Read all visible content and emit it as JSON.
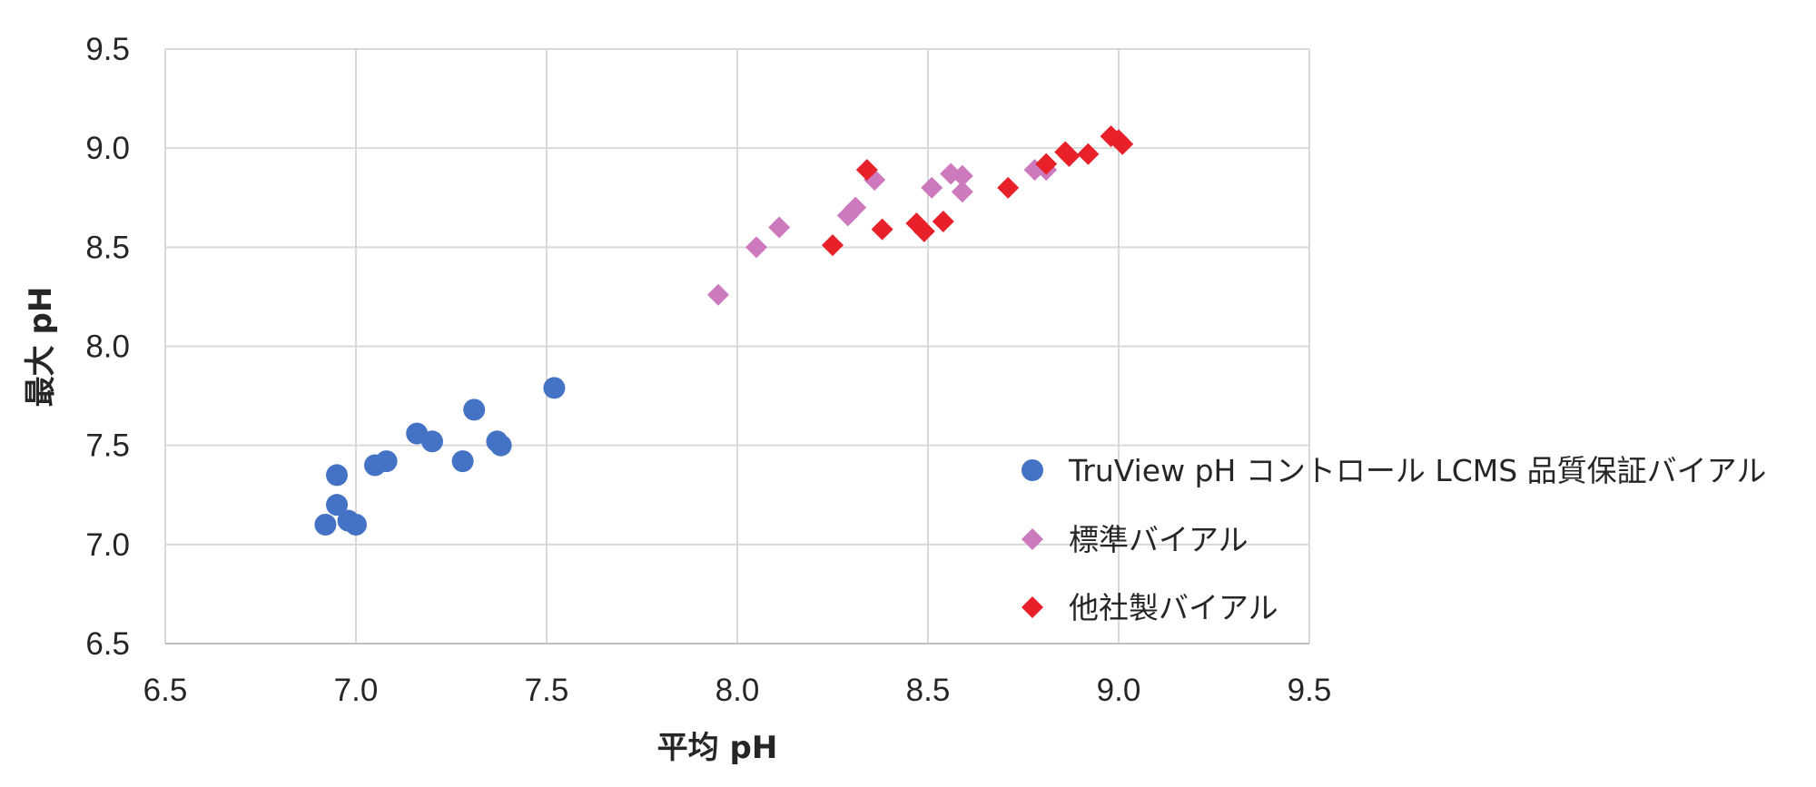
{
  "chart_data": {
    "type": "scatter",
    "title": "",
    "xlabel": "平均 pH",
    "ylabel": "最大 pH",
    "xlim": [
      6.5,
      9.5
    ],
    "ylim": [
      6.5,
      9.5
    ],
    "x_ticks": [
      "6.5",
      "7.0",
      "7.5",
      "8.0",
      "8.5",
      "9.0",
      "9.5"
    ],
    "y_ticks": [
      "6.5",
      "7.0",
      "7.5",
      "8.0",
      "8.5",
      "9.0",
      "9.5"
    ],
    "grid": true,
    "legend_position": "right",
    "series": [
      {
        "name": "TruView pH コントロール LCMS 品質保証バイアル",
        "marker": "circle",
        "color": "#4472C4",
        "points": [
          [
            6.92,
            7.1
          ],
          [
            6.95,
            7.35
          ],
          [
            6.95,
            7.2
          ],
          [
            6.98,
            7.12
          ],
          [
            7.0,
            7.1
          ],
          [
            7.05,
            7.4
          ],
          [
            7.08,
            7.42
          ],
          [
            7.16,
            7.56
          ],
          [
            7.2,
            7.52
          ],
          [
            7.28,
            7.42
          ],
          [
            7.31,
            7.68
          ],
          [
            7.37,
            7.52
          ],
          [
            7.38,
            7.5
          ],
          [
            7.52,
            7.79
          ]
        ]
      },
      {
        "name": "標準バイアル",
        "marker": "diamond",
        "color": "#CC79BD",
        "points": [
          [
            7.95,
            8.26
          ],
          [
            8.05,
            8.5
          ],
          [
            8.11,
            8.6
          ],
          [
            8.29,
            8.66
          ],
          [
            8.31,
            8.7
          ],
          [
            8.36,
            8.84
          ],
          [
            8.51,
            8.8
          ],
          [
            8.56,
            8.87
          ],
          [
            8.59,
            8.86
          ],
          [
            8.59,
            8.78
          ],
          [
            8.78,
            8.89
          ],
          [
            8.81,
            8.89
          ]
        ]
      },
      {
        "name": "他社製バイアル",
        "marker": "diamond",
        "color": "#E8202A",
        "points": [
          [
            8.25,
            8.51
          ],
          [
            8.34,
            8.89
          ],
          [
            8.38,
            8.59
          ],
          [
            8.47,
            8.62
          ],
          [
            8.49,
            8.58
          ],
          [
            8.54,
            8.63
          ],
          [
            8.71,
            8.8
          ],
          [
            8.81,
            8.92
          ],
          [
            8.86,
            8.98
          ],
          [
            8.87,
            8.96
          ],
          [
            8.92,
            8.97
          ],
          [
            8.98,
            9.06
          ],
          [
            9.0,
            9.04
          ],
          [
            9.01,
            9.02
          ]
        ]
      }
    ]
  }
}
